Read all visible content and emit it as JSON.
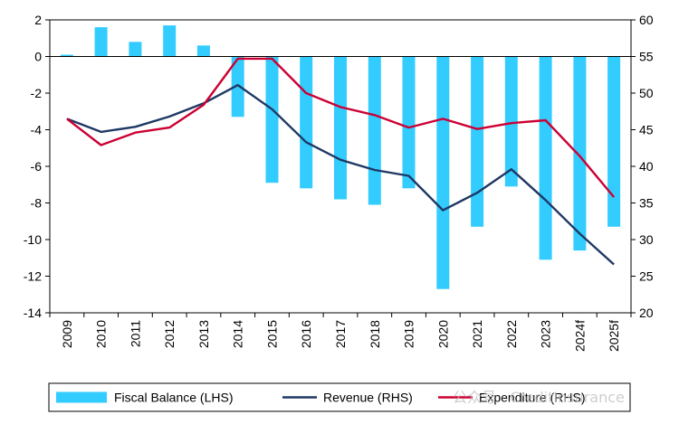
{
  "chart_data": {
    "type": "bar+line",
    "categories": [
      "2009",
      "2010",
      "2011",
      "2012",
      "2013",
      "2014",
      "2015",
      "2016",
      "2017",
      "2018",
      "2019",
      "2020",
      "2021",
      "2022",
      "2023",
      "2024f",
      "2025f"
    ],
    "series": [
      {
        "name": "Fiscal Balance (LHS)",
        "type": "bar",
        "axis": "left",
        "color": "#33CCFF",
        "values": [
          0.1,
          1.6,
          0.8,
          1.7,
          0.6,
          -3.3,
          -6.9,
          -7.2,
          -7.8,
          -8.1,
          -7.2,
          -12.7,
          -9.3,
          -7.1,
          -11.1,
          -10.6,
          -9.3
        ]
      },
      {
        "name": "Revenue (RHS)",
        "type": "line",
        "axis": "right",
        "color": "#1F3864",
        "values": [
          46.5,
          44.7,
          45.4,
          46.8,
          48.6,
          51.1,
          47.8,
          43.3,
          40.9,
          39.5,
          38.7,
          34.0,
          36.4,
          39.6,
          35.4,
          30.8,
          26.6
        ]
      },
      {
        "name": "Expenditure (RHS)",
        "type": "line",
        "axis": "right",
        "color": "#CC0033",
        "values": [
          46.5,
          42.9,
          44.6,
          45.3,
          48.4,
          54.7,
          54.7,
          50.0,
          48.1,
          47.0,
          45.3,
          46.5,
          45.1,
          45.9,
          46.3,
          41.4,
          35.8
        ]
      }
    ],
    "y_left": {
      "min": -14,
      "max": 2,
      "ticks": [
        "2",
        "0",
        "-2",
        "-4",
        "-6",
        "-8",
        "-10",
        "-12",
        "-14"
      ]
    },
    "y_right": {
      "min": 20,
      "max": 60,
      "ticks": [
        "60",
        "55",
        "50",
        "45",
        "40",
        "35",
        "30",
        "25",
        "20"
      ]
    },
    "legend_position": "bottom",
    "grid": false,
    "watermark": "公众号 · CreditInsurance"
  }
}
